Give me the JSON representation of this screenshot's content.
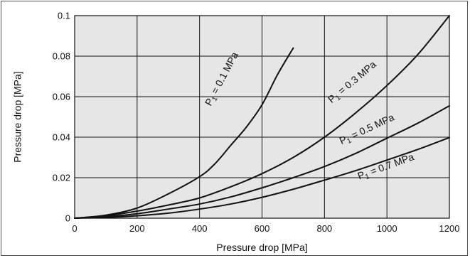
{
  "chart_data": {
    "type": "line",
    "xlabel": "Pressure drop [MPa]",
    "ylabel": "Pressure drop [MPa]",
    "xlim": [
      0,
      1200
    ],
    "ylim": [
      0,
      0.1
    ],
    "x_ticks": [
      "0",
      "200",
      "400",
      "600",
      "800",
      "1000",
      "1200"
    ],
    "y_ticks": [
      "0",
      "0.02",
      "0.04",
      "0.06",
      "0.08",
      "0.1"
    ],
    "x_tick_values": [
      0,
      200,
      400,
      600,
      800,
      1000,
      1200
    ],
    "y_tick_values": [
      0,
      0.02,
      0.04,
      0.06,
      0.08,
      0.1
    ],
    "grid": true,
    "plot_background": "#e6e6e6",
    "line_color": "#111111",
    "series": [
      {
        "name": "P1 = 0.1 MPa",
        "label_main": "P",
        "label_sub": "1",
        "label_rest": " = 0.1 MPa",
        "label_anchor": [
          480,
          0.068
        ],
        "label_angle_deg": -62,
        "points": [
          [
            0,
            0
          ],
          [
            100,
            0.0015
          ],
          [
            200,
            0.005
          ],
          [
            300,
            0.012
          ],
          [
            400,
            0.0205
          ],
          [
            450,
            0.027
          ],
          [
            500,
            0.036
          ],
          [
            550,
            0.045
          ],
          [
            600,
            0.056
          ],
          [
            650,
            0.071
          ],
          [
            700,
            0.084
          ]
        ]
      },
      {
        "name": "P1 = 0.3 MPa",
        "label_main": "P",
        "label_sub": "1",
        "label_rest": " = 0.3 MPa",
        "label_anchor": [
          895,
          0.066
        ],
        "label_angle_deg": -40,
        "points": [
          [
            0,
            0
          ],
          [
            100,
            0.0012
          ],
          [
            200,
            0.0035
          ],
          [
            300,
            0.0065
          ],
          [
            400,
            0.01
          ],
          [
            500,
            0.0155
          ],
          [
            600,
            0.022
          ],
          [
            700,
            0.03
          ],
          [
            800,
            0.04
          ],
          [
            900,
            0.052
          ],
          [
            1000,
            0.0655
          ],
          [
            1100,
            0.081
          ],
          [
            1200,
            0.1
          ]
        ]
      },
      {
        "name": "P1 = 0.5 MPa",
        "label_main": "P",
        "label_sub": "1",
        "label_rest": " = 0.5 MPa",
        "label_anchor": [
          940,
          0.0425
        ],
        "label_angle_deg": -25,
        "points": [
          [
            0,
            0
          ],
          [
            100,
            0.0007
          ],
          [
            200,
            0.0022
          ],
          [
            300,
            0.0045
          ],
          [
            400,
            0.007
          ],
          [
            500,
            0.0105
          ],
          [
            600,
            0.015
          ],
          [
            700,
            0.02
          ],
          [
            800,
            0.0255
          ],
          [
            900,
            0.032
          ],
          [
            1000,
            0.0395
          ],
          [
            1100,
            0.047
          ],
          [
            1200,
            0.0555
          ]
        ]
      },
      {
        "name": "P1 = 0.7 MPa",
        "label_main": "P",
        "label_sub": "1",
        "label_rest": " = 0.7 MPa",
        "label_anchor": [
          1000,
          0.024
        ],
        "label_angle_deg": -20,
        "points": [
          [
            0,
            0
          ],
          [
            100,
            0.0004
          ],
          [
            200,
            0.0012
          ],
          [
            300,
            0.0025
          ],
          [
            400,
            0.0045
          ],
          [
            500,
            0.007
          ],
          [
            600,
            0.0103
          ],
          [
            700,
            0.0143
          ],
          [
            800,
            0.0188
          ],
          [
            900,
            0.0235
          ],
          [
            1000,
            0.0287
          ],
          [
            1100,
            0.034
          ],
          [
            1200,
            0.0398
          ]
        ]
      }
    ]
  }
}
